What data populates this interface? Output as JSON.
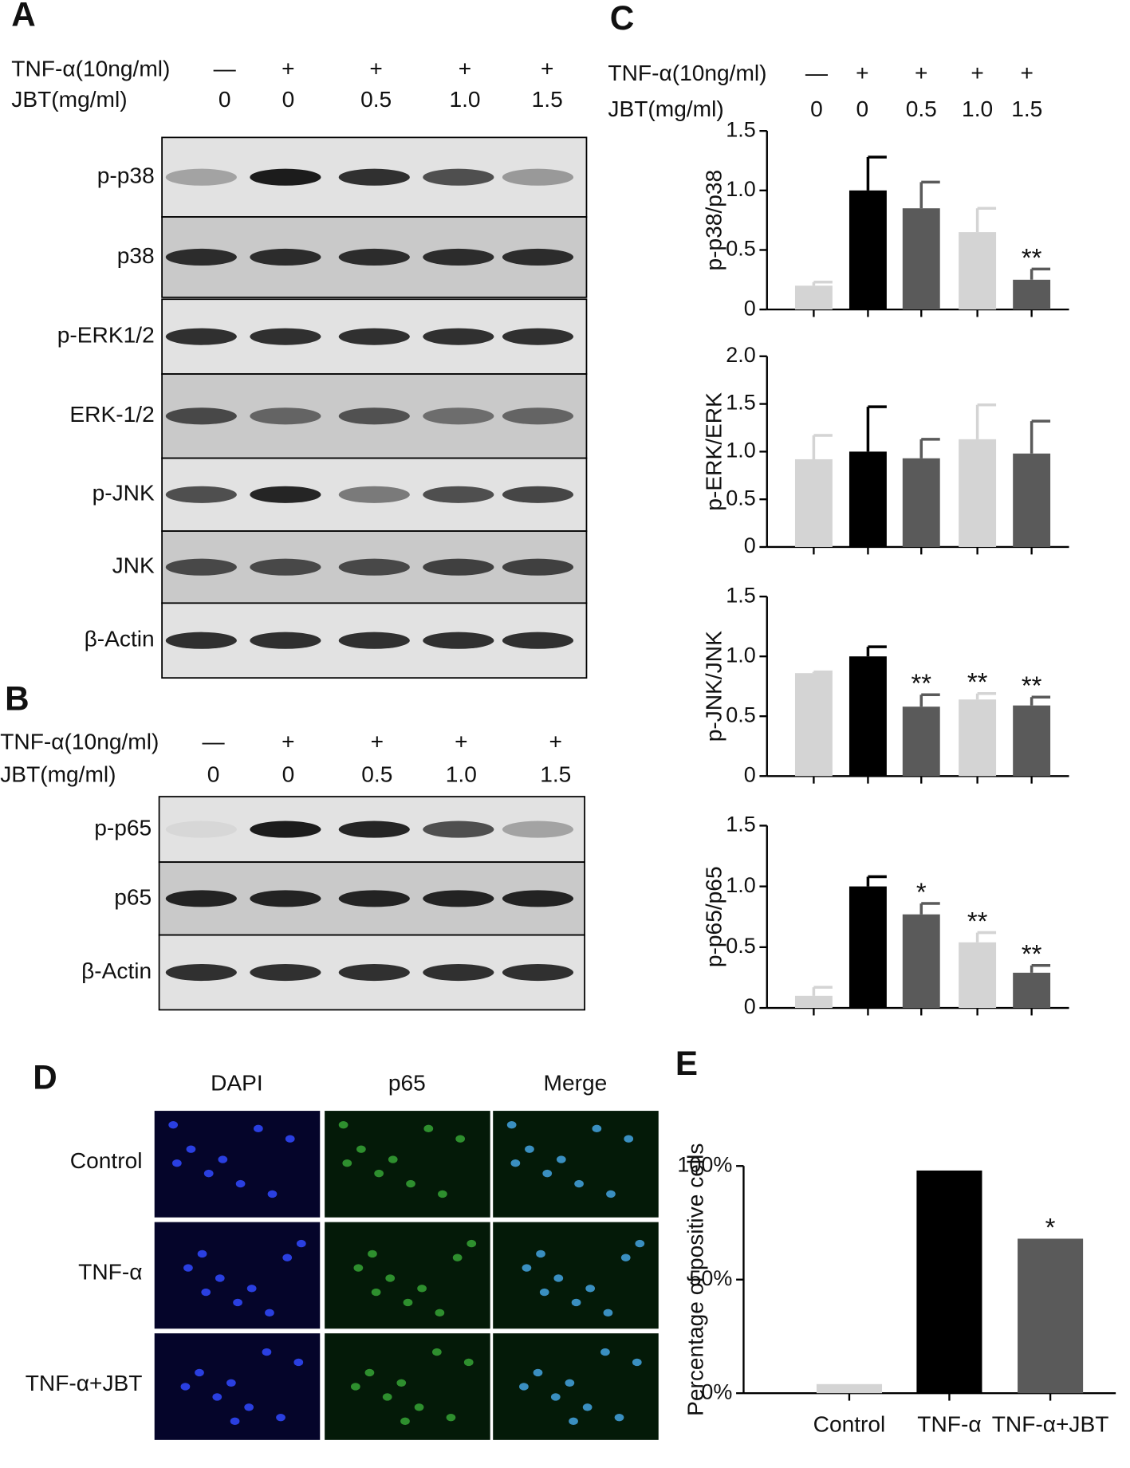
{
  "panel_a": {
    "letter": "A",
    "row_labels": [
      "TNF-α(10ng/ml)",
      "JBT(mg/ml)"
    ],
    "tnf": [
      "—",
      "+",
      "+",
      "+",
      "+"
    ],
    "jbt": [
      "0",
      "0",
      "0.5",
      "1.0",
      "1.5"
    ],
    "bands": [
      "p-p38",
      "p38",
      "p-ERK1/2",
      "ERK-1/2",
      "p-JNK",
      "JNK",
      "β-Actin"
    ]
  },
  "panel_b": {
    "letter": "B",
    "row_labels": [
      "TNF-α(10ng/ml)",
      "JBT(mg/ml)"
    ],
    "tnf": [
      "—",
      "+",
      "+",
      "+",
      "+"
    ],
    "jbt": [
      "0",
      "0",
      "0.5",
      "1.0",
      "1.5"
    ],
    "bands": [
      "p-p65",
      "p65",
      "β-Actin"
    ]
  },
  "panel_c": {
    "letter": "C",
    "row_labels": [
      "TNF-α(10ng/ml)",
      "JBT(mg/ml)"
    ],
    "tnf": [
      "—",
      "+",
      "+",
      "+",
      "+"
    ],
    "jbt": [
      "0",
      "0",
      "0.5",
      "1.0",
      "1.5"
    ]
  },
  "panel_d": {
    "letter": "D",
    "columns": [
      "DAPI",
      "p65",
      "Merge"
    ],
    "rows": [
      "Control",
      "TNF-α",
      "TNF-α+JBT"
    ]
  },
  "panel_e": {
    "letter": "E"
  },
  "chart_data": [
    {
      "type": "bar",
      "ylabel": "p-p38/p38",
      "ylim": [
        0,
        1.5
      ],
      "yticks": [
        0,
        0.5,
        {
          "value": 1,
          "label": "1.0"
        },
        1.5
      ],
      "values": [
        0.2,
        1.0,
        0.85,
        0.65,
        0.25
      ],
      "errors": [
        0.03,
        0.28,
        0.22,
        0.2,
        0.09
      ],
      "colors": [
        "#d4d4d4",
        "#000000",
        "#5a5a5a",
        "#d4d4d4",
        "#5a5a5a"
      ],
      "stars": [
        null,
        null,
        null,
        null,
        "**"
      ]
    },
    {
      "type": "bar",
      "ylabel": "p-ERK/ERK",
      "ylim": [
        0,
        2
      ],
      "yticks": [
        0,
        0.5,
        {
          "value": 1,
          "label": "1.0"
        },
        1.5,
        {
          "value": 2,
          "label": "2.0"
        }
      ],
      "values": [
        0.92,
        1.0,
        0.93,
        1.13,
        0.98
      ],
      "errors": [
        0.25,
        0.47,
        0.2,
        0.36,
        0.34
      ],
      "colors": [
        "#d4d4d4",
        "#000000",
        "#5a5a5a",
        "#d4d4d4",
        "#5a5a5a"
      ],
      "stars": [
        null,
        null,
        null,
        null,
        null
      ]
    },
    {
      "type": "bar",
      "ylabel": "p-JNK/JNK",
      "ylim": [
        0,
        1.5
      ],
      "yticks": [
        0,
        0.5,
        {
          "value": 1,
          "label": "1.0"
        },
        1.5
      ],
      "values": [
        0.86,
        1.0,
        0.58,
        0.64,
        0.59
      ],
      "errors": [
        0.01,
        0.08,
        0.1,
        0.05,
        0.07
      ],
      "colors": [
        "#d4d4d4",
        "#000000",
        "#5a5a5a",
        "#d4d4d4",
        "#5a5a5a"
      ],
      "stars": [
        null,
        null,
        "**",
        "**",
        "**"
      ]
    },
    {
      "type": "bar",
      "ylabel": "p-p65/p65",
      "ylim": [
        0,
        1.5
      ],
      "yticks": [
        0,
        0.5,
        {
          "value": 1,
          "label": "1.0"
        },
        1.5
      ],
      "values": [
        0.1,
        1.0,
        0.77,
        0.54,
        0.29
      ],
      "errors": [
        0.07,
        0.08,
        0.09,
        0.08,
        0.06
      ],
      "colors": [
        "#d4d4d4",
        "#000000",
        "#5a5a5a",
        "#d4d4d4",
        "#5a5a5a"
      ],
      "stars": [
        null,
        null,
        "*",
        "**",
        "**"
      ]
    },
    {
      "type": "bar",
      "ylabel": "Percentage of positive cells",
      "categories": [
        "Control",
        "TNF-α",
        "TNF-α+JBT"
      ],
      "ylim": [
        0,
        100
      ],
      "yticks": [
        {
          "value": 0,
          "label": "0%"
        },
        {
          "value": 50,
          "label": "50%"
        },
        {
          "value": 100,
          "label": "100%"
        }
      ],
      "values": [
        4,
        98,
        68
      ],
      "colors": [
        "#d4d4d4",
        "#000000",
        "#5a5a5a"
      ],
      "stars": [
        null,
        null,
        "*"
      ]
    }
  ]
}
